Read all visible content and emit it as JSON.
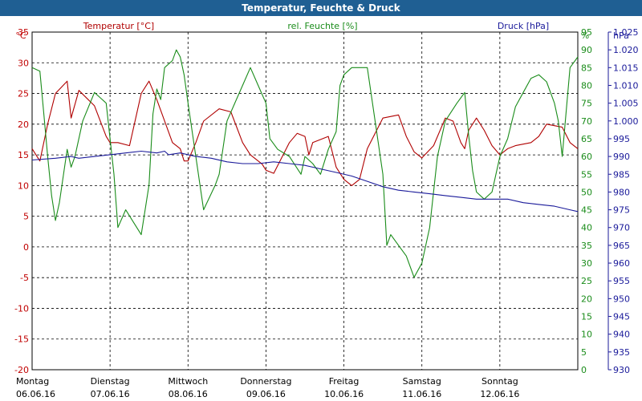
{
  "window": {
    "title": "Temperatur, Feuchte & Druck"
  },
  "chart_data": {
    "type": "line",
    "legend": {
      "temperature": "Temperatur [°C]",
      "humidity": "rel. Feuchte [%]",
      "pressure": "Druck [hPa]"
    },
    "axes": {
      "left": {
        "unit": "°C",
        "min": -20,
        "max": 35,
        "color": "#c00000",
        "ticks": [
          "35",
          "30",
          "25",
          "20",
          "15",
          "10",
          "5",
          "0",
          "-5",
          "-10",
          "-15",
          "-20"
        ]
      },
      "right1": {
        "unit": "%",
        "min": 0,
        "max": 95,
        "color": "#1a8c1a",
        "ticks": [
          "95",
          "90",
          "85",
          "80",
          "75",
          "70",
          "65",
          "60",
          "55",
          "50",
          "45",
          "40",
          "35",
          "30",
          "25",
          "20",
          "15",
          "10",
          "5",
          "0"
        ]
      },
      "right2": {
        "unit": "hPa",
        "min": 930,
        "max": 1025,
        "color": "#1a1a9a",
        "ticks": [
          "1.025",
          "1.020",
          "1.015",
          "1.010",
          "1.005",
          "1.000",
          "995",
          "990",
          "985",
          "980",
          "975",
          "970",
          "965",
          "960",
          "955",
          "950",
          "945",
          "940",
          "935",
          "930"
        ]
      }
    },
    "x_axis": {
      "days": [
        {
          "day": "Montag",
          "date": "06.06.16"
        },
        {
          "day": "Dienstag",
          "date": "07.06.16"
        },
        {
          "day": "Mittwoch",
          "date": "08.06.16"
        },
        {
          "day": "Donnerstag",
          "date": "09.06.16"
        },
        {
          "day": "Freitag",
          "date": "10.06.16"
        },
        {
          "day": "Samstag",
          "date": "11.06.16"
        },
        {
          "day": "Sonntag",
          "date": "12.06.16"
        }
      ],
      "span_days": 7
    },
    "grid": true,
    "series": [
      {
        "name": "Temperatur [°C]",
        "axis": "left",
        "color": "#b00000",
        "x": [
          0,
          0.1,
          0.2,
          0.3,
          0.45,
          0.5,
          0.6,
          0.8,
          0.95,
          1.0,
          1.1,
          1.25,
          1.4,
          1.5,
          1.6,
          1.8,
          1.9,
          1.95,
          2.0,
          2.1,
          2.2,
          2.4,
          2.55,
          2.7,
          2.8,
          2.95,
          3.0,
          3.1,
          3.2,
          3.3,
          3.4,
          3.5,
          3.55,
          3.6,
          3.8,
          3.9,
          4.0,
          4.1,
          4.2,
          4.3,
          4.5,
          4.7,
          4.8,
          4.9,
          5.0,
          5.15,
          5.3,
          5.4,
          5.5,
          5.55,
          5.6,
          5.7,
          5.8,
          5.9,
          6.0,
          6.1,
          6.2,
          6.4,
          6.5,
          6.6,
          6.8,
          6.9,
          7.0
        ],
        "y": [
          16,
          14,
          20,
          25,
          27,
          21,
          25.5,
          23,
          18,
          17,
          17,
          16.5,
          25,
          27,
          24,
          17,
          16,
          14,
          14,
          17,
          20.5,
          22.5,
          22,
          17,
          15,
          13.5,
          12.5,
          12,
          14.5,
          17,
          18.5,
          18,
          15,
          17,
          18,
          13,
          11,
          10,
          11,
          16,
          21,
          21.5,
          18,
          15.5,
          14.5,
          16.5,
          21,
          20.5,
          17,
          16,
          19,
          21,
          19,
          16.5,
          15,
          16,
          16.5,
          17,
          18,
          20,
          19.5,
          17,
          16
        ]
      },
      {
        "name": "rel. Feuchte [%]",
        "axis": "right1",
        "color": "#1a8c1a",
        "x": [
          0,
          0.1,
          0.15,
          0.2,
          0.25,
          0.3,
          0.35,
          0.45,
          0.5,
          0.55,
          0.65,
          0.8,
          0.95,
          1.05,
          1.1,
          1.2,
          1.4,
          1.5,
          1.55,
          1.6,
          1.65,
          1.7,
          1.8,
          1.85,
          1.9,
          1.95,
          2.0,
          2.1,
          2.2,
          2.35,
          2.4,
          2.5,
          2.6,
          2.7,
          2.8,
          2.9,
          3.0,
          3.05,
          3.15,
          3.3,
          3.45,
          3.5,
          3.6,
          3.7,
          3.8,
          3.9,
          3.95,
          4.0,
          4.1,
          4.3,
          4.5,
          4.55,
          4.6,
          4.7,
          4.8,
          4.9,
          5.0,
          5.1,
          5.2,
          5.3,
          5.45,
          5.55,
          5.6,
          5.65,
          5.7,
          5.8,
          5.9,
          6.0,
          6.1,
          6.2,
          6.3,
          6.4,
          6.5,
          6.6,
          6.7,
          6.75,
          6.8,
          6.9,
          7.0
        ],
        "y": [
          85,
          84,
          72,
          60,
          49,
          42,
          47,
          62,
          57,
          60,
          70,
          78,
          75,
          55,
          40,
          45,
          38,
          52,
          72,
          79,
          76,
          85,
          87,
          90,
          88,
          83,
          75,
          60,
          45,
          52,
          55,
          70,
          75,
          80,
          85,
          80,
          75,
          65,
          62,
          60,
          55,
          60,
          58,
          55,
          62,
          67,
          80,
          83,
          85,
          85,
          55,
          35,
          38,
          35,
          32,
          26,
          30,
          40,
          60,
          70,
          75,
          78,
          66,
          56,
          50,
          48,
          50,
          60,
          65,
          74,
          78,
          82,
          83,
          81,
          75,
          70,
          60,
          85,
          88
        ]
      },
      {
        "name": "Druck [hPa]",
        "axis": "right2",
        "color": "#1a1a9a",
        "x": [
          0,
          0.3,
          0.5,
          0.6,
          0.8,
          1.0,
          1.2,
          1.4,
          1.6,
          1.7,
          1.75,
          1.9,
          2.1,
          2.3,
          2.5,
          2.7,
          2.9,
          3.1,
          3.3,
          3.5,
          3.7,
          3.9,
          4.1,
          4.3,
          4.5,
          4.7,
          4.9,
          5.1,
          5.3,
          5.5,
          5.7,
          5.9,
          6.1,
          6.3,
          6.5,
          6.7,
          6.9,
          7.0
        ],
        "y": [
          989,
          989.5,
          990,
          989.5,
          990,
          990.5,
          991,
          991.5,
          991,
          991.5,
          990.5,
          991,
          990,
          989.5,
          988.5,
          988,
          988,
          988.5,
          988,
          987.5,
          986.5,
          985.5,
          984.5,
          983,
          981.5,
          980.5,
          980,
          979.5,
          979,
          978.5,
          978,
          978,
          978,
          977,
          976.5,
          976,
          975,
          974.5
        ]
      }
    ]
  }
}
